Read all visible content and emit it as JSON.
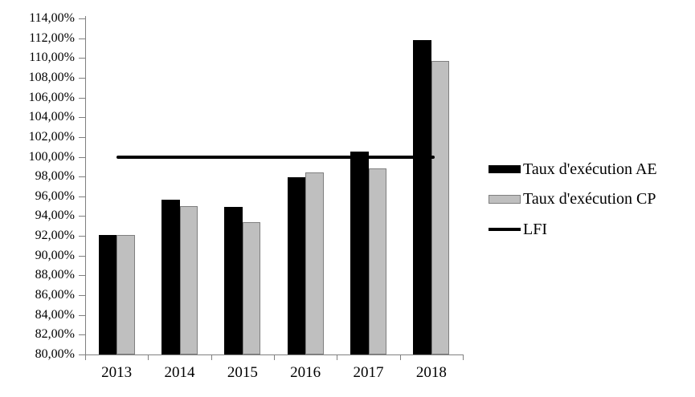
{
  "chart_data": {
    "type": "bar",
    "title": "",
    "xlabel": "",
    "ylabel": "",
    "grid": false,
    "legend_position": "right",
    "categories": [
      "2013",
      "2014",
      "2015",
      "2016",
      "2017",
      "2018"
    ],
    "series": [
      {
        "name": "Taux d'exécution AE",
        "color": "#000000",
        "values": [
          92.1,
          95.7,
          94.9,
          97.9,
          100.5,
          111.8
        ]
      },
      {
        "name": "Taux d'exécution CP",
        "color": "#bfbfbf",
        "border_color": "#7f7f7f",
        "values": [
          92.1,
          95.0,
          93.4,
          98.4,
          98.8,
          109.7
        ]
      }
    ],
    "line_series": {
      "name": "LFI",
      "color": "#000000",
      "value": 100.0,
      "values": [
        100.0,
        100.0,
        100.0,
        100.0,
        100.0,
        100.0
      ]
    },
    "ylim": [
      80,
      114
    ],
    "ytick_step": 2,
    "ytick_labels": [
      "114,00%",
      "112,00%",
      "110,00%",
      "108,00%",
      "106,00%",
      "104,00%",
      "102,00%",
      "100,00%",
      "98,00%",
      "96,00%",
      "94,00%",
      "92,00%",
      "90,00%",
      "88,00%",
      "86,00%",
      "84,00%",
      "82,00%",
      "80,00%"
    ],
    "axis_color": "#808080",
    "text_color": "#000000"
  },
  "legend": {
    "items": [
      {
        "label": "Taux d'exécution AE"
      },
      {
        "label": "Taux d'exécution CP"
      },
      {
        "label": "LFI"
      }
    ]
  }
}
